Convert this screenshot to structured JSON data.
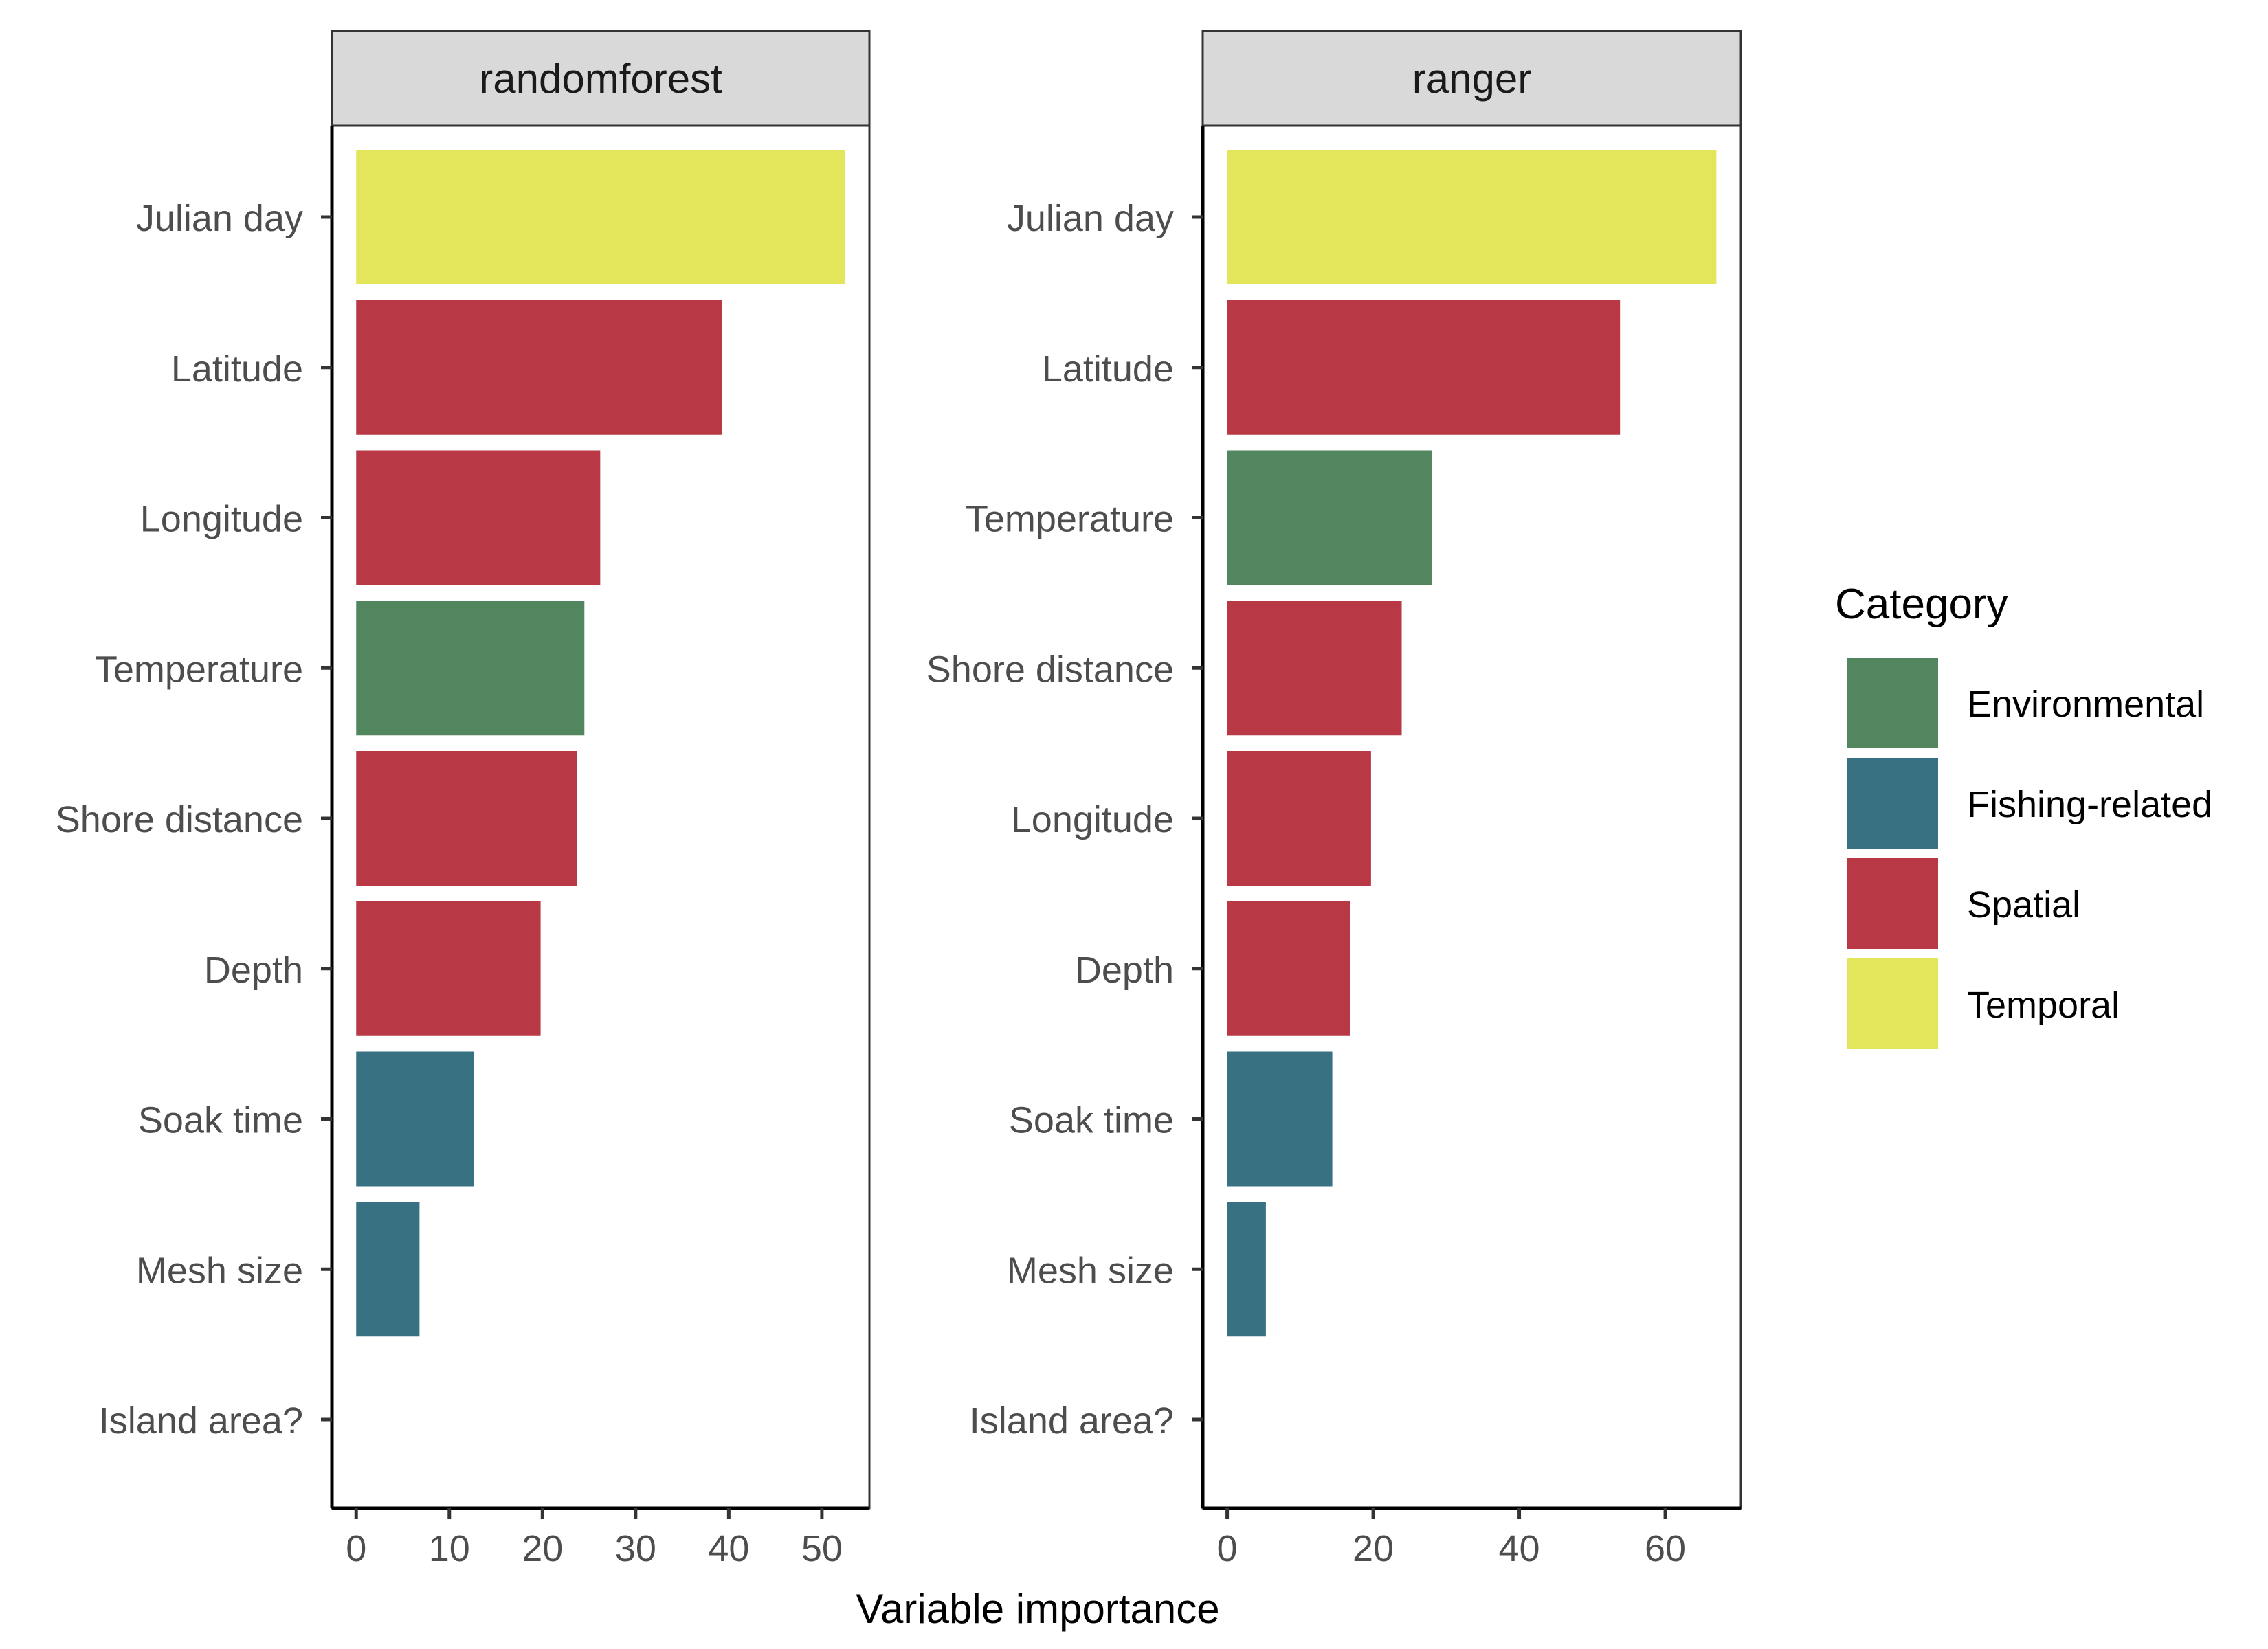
{
  "xlabel": "Variable importance",
  "legend": {
    "title": "Category",
    "position": "right",
    "items": [
      {
        "label": "Environmental",
        "color": "#52865f"
      },
      {
        "label": "Fishing-related",
        "color": "#387282"
      },
      {
        "label": "Spatial",
        "color": "#b83845"
      },
      {
        "label": "Temporal",
        "color": "#e3e55a"
      }
    ]
  },
  "chart_data": [
    {
      "type": "bar",
      "orientation": "horizontal",
      "panel": "randomforest",
      "categories": [
        "Julian day",
        "Latitude",
        "Longitude",
        "Temperature",
        "Shore distance",
        "Depth",
        "Soak time",
        "Mesh size",
        "Island area?"
      ],
      "values": [
        52.5,
        39.3,
        26.2,
        24.5,
        23.7,
        19.8,
        12.6,
        6.8,
        0
      ],
      "category_groups": [
        "Temporal",
        "Spatial",
        "Spatial",
        "Environmental",
        "Spatial",
        "Spatial",
        "Fishing-related",
        "Fishing-related",
        "Spatial"
      ],
      "xlim": [
        -2.6,
        55.1
      ],
      "xticks": [
        0,
        10,
        20,
        30,
        40,
        50
      ],
      "xlabel": "Variable importance",
      "grid": false
    },
    {
      "type": "bar",
      "orientation": "horizontal",
      "panel": "ranger",
      "categories": [
        "Julian day",
        "Latitude",
        "Temperature",
        "Shore distance",
        "Longitude",
        "Depth",
        "Soak time",
        "Mesh size",
        "Island area?"
      ],
      "values": [
        67.0,
        53.8,
        28.0,
        23.9,
        19.7,
        16.8,
        14.4,
        5.3,
        0
      ],
      "category_groups": [
        "Temporal",
        "Spatial",
        "Environmental",
        "Spatial",
        "Spatial",
        "Spatial",
        "Fishing-related",
        "Fishing-related",
        "Spatial"
      ],
      "xlim": [
        -3.35,
        70.35
      ],
      "xticks": [
        0,
        20,
        40,
        60
      ],
      "xlabel": "Variable importance",
      "grid": false
    }
  ]
}
